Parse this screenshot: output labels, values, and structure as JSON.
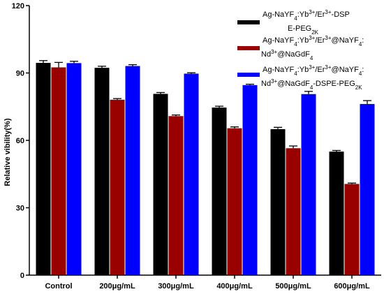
{
  "chart_data": {
    "type": "bar",
    "ylabel": "Relative vibility(%)",
    "ylim": [
      0,
      120
    ],
    "yticks": [
      "0",
      "30",
      "60",
      "90",
      "120"
    ],
    "categories": [
      "Control",
      "200μg/mL",
      "300μg/mL",
      "400μg/mL",
      "500μg/mL",
      "600μg/mL"
    ],
    "series": [
      {
        "legend_lines": [
          "Ag-NaYF4:Yb3+/Er3+-DSP",
          "E-PEG2K"
        ],
        "color": "#000000",
        "values": [
          94.5,
          92.3,
          80.7,
          74.6,
          65.0,
          55.0
        ],
        "errors": [
          1.0,
          0.7,
          0.6,
          0.6,
          0.8,
          0.5
        ]
      },
      {
        "legend_lines": [
          "Ag-NaYF4:Yb3+/Er3+@NaYF4:",
          "Nd3+@NaGdF4"
        ],
        "color": "#990000",
        "values": [
          92.5,
          78.1,
          70.8,
          65.4,
          56.5,
          40.6
        ],
        "errors": [
          2.2,
          0.5,
          0.5,
          0.6,
          1.0,
          0.4
        ]
      },
      {
        "legend_lines": [
          "Ag-NaYF4:Yb3+/Er3+@NaYF4:",
          "Nd3+@NaGdF4-DSPE-PEG2K"
        ],
        "color": "#0000ff",
        "values": [
          94.4,
          93.1,
          89.7,
          84.6,
          80.6,
          76.2
        ],
        "errors": [
          0.8,
          0.6,
          0.4,
          0.4,
          1.2,
          1.5
        ]
      }
    ]
  }
}
